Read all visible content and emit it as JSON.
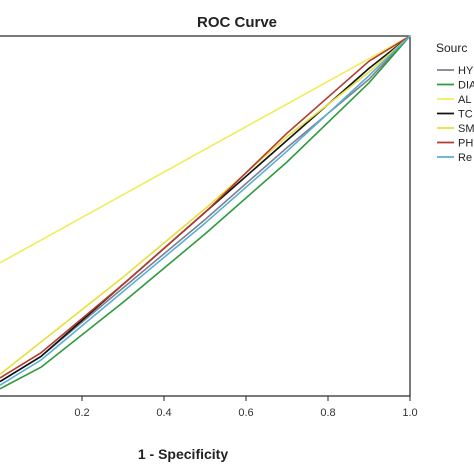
{
  "chart_data": {
    "type": "line",
    "title": "ROC Curve",
    "xlabel": "1 - Specificity",
    "ylabel": "",
    "xlim": [
      0.0,
      1.0
    ],
    "ylim": [
      0.0,
      1.0
    ],
    "x_ticks": [
      0.2,
      0.4,
      0.6,
      0.8,
      1.0
    ],
    "x_tick_labels": [
      "0.2",
      "0.4",
      "0.6",
      "0.8",
      "1.0"
    ],
    "legend_title": "Sourc",
    "legend_position": "right (partially cropped)",
    "grid": false,
    "series": [
      {
        "name": "HY",
        "color": "#7f7f8f",
        "x": [
          0.0,
          0.1,
          0.3,
          0.5,
          0.7,
          0.9,
          1.0
        ],
        "y": [
          0.04,
          0.11,
          0.3,
          0.49,
          0.69,
          0.88,
          1.0
        ]
      },
      {
        "name": "DIA",
        "color": "#2f9a3c",
        "x": [
          0.0,
          0.1,
          0.3,
          0.5,
          0.7,
          0.9,
          1.0
        ],
        "y": [
          0.02,
          0.08,
          0.26,
          0.45,
          0.65,
          0.87,
          1.0
        ]
      },
      {
        "name": "AL",
        "color": "#eeee5a",
        "x": [
          0.0,
          1.0
        ],
        "y": [
          0.37,
          1.0
        ]
      },
      {
        "name": "TC",
        "color": "#111111",
        "x": [
          0.0,
          0.1,
          0.3,
          0.5,
          0.7,
          0.9,
          1.0
        ],
        "y": [
          0.04,
          0.11,
          0.31,
          0.51,
          0.71,
          0.91,
          1.0
        ]
      },
      {
        "name": "SM",
        "color": "#e6df3a",
        "x": [
          0.0,
          0.1,
          0.3,
          0.5,
          0.7,
          0.9,
          1.0
        ],
        "y": [
          0.06,
          0.15,
          0.33,
          0.52,
          0.72,
          0.9,
          1.0
        ]
      },
      {
        "name": "PH",
        "color": "#b23a2e",
        "x": [
          0.0,
          0.1,
          0.3,
          0.5,
          0.7,
          0.9,
          1.0
        ],
        "y": [
          0.05,
          0.12,
          0.31,
          0.51,
          0.73,
          0.93,
          1.0
        ]
      },
      {
        "name": "Re",
        "color": "#5aaed6",
        "x": [
          0.0,
          0.1,
          0.3,
          0.5,
          0.7,
          0.9,
          1.0
        ],
        "y": [
          0.03,
          0.1,
          0.29,
          0.48,
          0.68,
          0.89,
          1.0
        ]
      }
    ]
  }
}
